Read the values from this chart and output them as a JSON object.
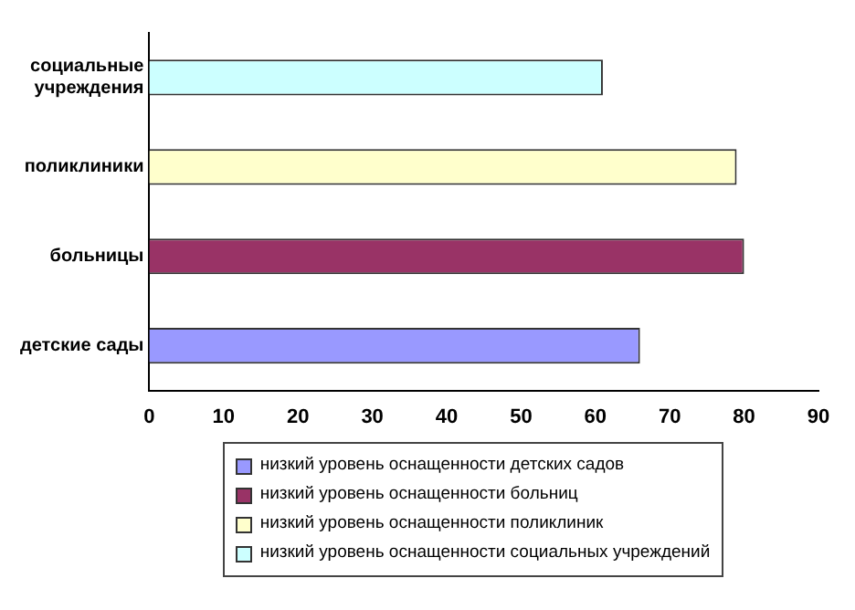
{
  "chart_data": {
    "type": "bar",
    "orientation": "horizontal",
    "categories": [
      "социальные учреждения",
      "поликлиники",
      "больницы",
      "детские сады"
    ],
    "series": [
      {
        "name": "низкий уровень оснащенности детских садов",
        "color": "#9999ff",
        "values": [
          null,
          null,
          null,
          66
        ]
      },
      {
        "name": "низкий уровень оснащенности больниц",
        "color": "#993366",
        "values": [
          null,
          null,
          80,
          null
        ]
      },
      {
        "name": "низкий уровень оснащенности поликлиник",
        "color": "#ffffcc",
        "values": [
          null,
          79,
          null,
          null
        ]
      },
      {
        "name": "низкий уровень оснащенности социальных учреждений",
        "color": "#ccffff",
        "values": [
          61,
          null,
          null,
          null
        ]
      }
    ],
    "xlim": [
      0,
      90
    ],
    "xticks": [
      0,
      10,
      20,
      30,
      40,
      50,
      60,
      70,
      80,
      90
    ],
    "grid": false,
    "legend": "bottom"
  }
}
